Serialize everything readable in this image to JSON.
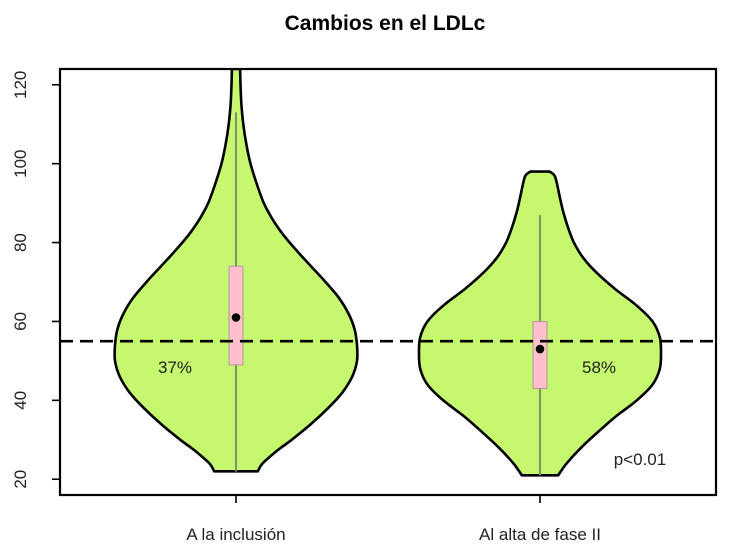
{
  "chart_data": {
    "type": "violin",
    "title": "Cambios en el LDLc",
    "xlabel": "",
    "ylabel": "",
    "ylim": [
      16,
      124
    ],
    "yticks": [
      20,
      40,
      60,
      80,
      100,
      120
    ],
    "grid": false,
    "legend": "none",
    "categories": [
      "A la inclusión",
      "Al alta de fase II"
    ],
    "groups": [
      {
        "category": "A la inclusión",
        "min": 22,
        "q1": 49,
        "median": 61,
        "q3": 74,
        "max": 113,
        "violin_top": 124,
        "density": [
          [
            22,
            0.18
          ],
          [
            24,
            0.22
          ],
          [
            27,
            0.33
          ],
          [
            30,
            0.46
          ],
          [
            34,
            0.62
          ],
          [
            38,
            0.76
          ],
          [
            42,
            0.88
          ],
          [
            46,
            0.96
          ],
          [
            50,
            1.0
          ],
          [
            54,
            1.0
          ],
          [
            58,
            0.98
          ],
          [
            62,
            0.93
          ],
          [
            66,
            0.85
          ],
          [
            70,
            0.74
          ],
          [
            74,
            0.62
          ],
          [
            78,
            0.5
          ],
          [
            82,
            0.39
          ],
          [
            86,
            0.3
          ],
          [
            90,
            0.23
          ],
          [
            95,
            0.17
          ],
          [
            100,
            0.12
          ],
          [
            105,
            0.085
          ],
          [
            110,
            0.06
          ],
          [
            115,
            0.045
          ],
          [
            120,
            0.037
          ],
          [
            124,
            0.034
          ]
        ],
        "annotation": "37%"
      },
      {
        "category": "Al alta de fase II",
        "min": 21,
        "q1": 43,
        "median": 53,
        "q3": 60,
        "max": 87,
        "violin_top": 98,
        "density": [
          [
            21,
            0.15
          ],
          [
            24,
            0.22
          ],
          [
            28,
            0.34
          ],
          [
            32,
            0.48
          ],
          [
            36,
            0.63
          ],
          [
            40,
            0.8
          ],
          [
            44,
            0.93
          ],
          [
            48,
            0.99
          ],
          [
            52,
            1.0
          ],
          [
            56,
            0.99
          ],
          [
            60,
            0.93
          ],
          [
            64,
            0.8
          ],
          [
            68,
            0.63
          ],
          [
            72,
            0.48
          ],
          [
            76,
            0.36
          ],
          [
            80,
            0.28
          ],
          [
            84,
            0.23
          ],
          [
            88,
            0.19
          ],
          [
            92,
            0.16
          ],
          [
            95,
            0.14
          ],
          [
            97,
            0.12
          ],
          [
            98,
            0.08
          ]
        ],
        "annotation": "58%"
      }
    ],
    "reference_line": 55,
    "p_value": "p<0.01",
    "colors": {
      "violin_fill": "#c5f76f",
      "box_fill": "#ffc0cb",
      "box_stroke": "#b59496",
      "whisker": "#7f8f6a",
      "median_point": "#000000",
      "outline": "#000000",
      "reference_line": "#000000"
    }
  }
}
